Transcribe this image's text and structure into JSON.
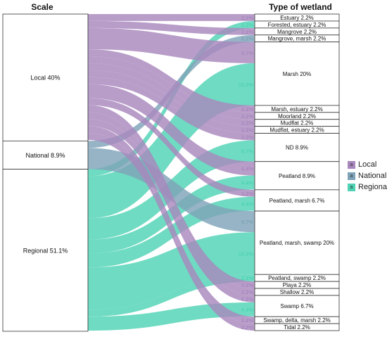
{
  "chart_data": {
    "type": "sankey",
    "left_axis_title": "Scale",
    "right_axis_title": "Type of wetland",
    "colors": {
      "Local": "#a887bd",
      "National": "#7fa3b8",
      "Regional": "#4fd3b4"
    },
    "left_nodes": [
      {
        "name": "Local",
        "label": "Local  40%",
        "value": 40
      },
      {
        "name": "National",
        "label": "National  8.9%",
        "value": 8.9
      },
      {
        "name": "Regional",
        "label": "Regional  51.1%",
        "value": 51.1
      }
    ],
    "right_nodes": [
      {
        "name": "Estuary",
        "label": "Estuary  2.2%",
        "value": 2.2
      },
      {
        "name": "Forested, estuary",
        "label": "Forested, estuary  2.2%",
        "value": 2.2
      },
      {
        "name": "Mangrove",
        "label": "Mangrove  2.2%",
        "value": 2.2
      },
      {
        "name": "Mangrove, marsh",
        "label": "Mangrove, marsh  2.2%",
        "value": 2.2
      },
      {
        "name": "Marsh",
        "label": "Marsh  20%",
        "value": 20
      },
      {
        "name": "Marsh, estuary",
        "label": "Marsh, estuary  2.2%",
        "value": 2.2
      },
      {
        "name": "Moorland",
        "label": "Moorland  2.2%",
        "value": 2.2
      },
      {
        "name": "Mudflat",
        "label": "Mudflat  2.2%",
        "value": 2.2
      },
      {
        "name": "Mudflat, estuary",
        "label": "Mudflat, estuary  2.2%",
        "value": 2.2
      },
      {
        "name": "ND",
        "label": "ND  8.9%",
        "value": 8.9
      },
      {
        "name": "Peatland",
        "label": "Peatland  8.9%",
        "value": 8.9
      },
      {
        "name": "Peatland, marsh",
        "label": "Peatland, marsh  6.7%",
        "value": 6.7
      },
      {
        "name": "Peatland, marsh, swamp",
        "label": "Peatland, marsh, swamp  20%",
        "value": 20
      },
      {
        "name": "Peatland, swamp",
        "label": "Peatland, swamp  2.2%",
        "value": 2.2
      },
      {
        "name": "Playa",
        "label": "Playa  2.2%",
        "value": 2.2
      },
      {
        "name": "Shallow",
        "label": "Shallow  2.2%",
        "value": 2.2
      },
      {
        "name": "Swamp",
        "label": "Swamp  6.7%",
        "value": 6.7
      },
      {
        "name": "Swamp, delta, marsh",
        "label": "Swamp, delta, marsh  2.2%",
        "value": 2.2
      },
      {
        "name": "Tidal",
        "label": "Tidal  2.2%",
        "value": 2.2
      }
    ],
    "flows": [
      {
        "source": "Local",
        "target": "Estuary",
        "value": 2.2,
        "label": "2.2%"
      },
      {
        "source": "Regional",
        "target": "Forested, estuary",
        "value": 2.2,
        "label": "2.2%"
      },
      {
        "source": "Local",
        "target": "Mangrove",
        "value": 2.2,
        "label": "2.2%"
      },
      {
        "source": "National",
        "target": "Mangrove, marsh",
        "value": 2.2,
        "label": "2.2%"
      },
      {
        "source": "Local",
        "target": "Marsh",
        "value": 6.7,
        "label": "6.7%"
      },
      {
        "source": "Regional",
        "target": "Marsh",
        "value": 13.3,
        "label": "13.3%"
      },
      {
        "source": "Local",
        "target": "Marsh, estuary",
        "value": 2.2,
        "label": "2.2%"
      },
      {
        "source": "Local",
        "target": "Moorland",
        "value": 2.2,
        "label": "2.2%"
      },
      {
        "source": "Local",
        "target": "Mudflat",
        "value": 2.2,
        "label": "2.2%"
      },
      {
        "source": "Local",
        "target": "Mudflat, estuary",
        "value": 2.2,
        "label": "2.2%"
      },
      {
        "source": "Local",
        "target": "ND",
        "value": 2.2,
        "label": "2.2%"
      },
      {
        "source": "Regional",
        "target": "ND",
        "value": 6.7,
        "label": "6.7%"
      },
      {
        "source": "Local",
        "target": "Peatland",
        "value": 4.4,
        "label": "4.4%"
      },
      {
        "source": "Regional",
        "target": "Peatland",
        "value": 4.4,
        "label": "4.4%"
      },
      {
        "source": "Local",
        "target": "Peatland, marsh",
        "value": 2.2,
        "label": "2.2%"
      },
      {
        "source": "Regional",
        "target": "Peatland, marsh",
        "value": 4.4,
        "label": "4.4%"
      },
      {
        "source": "National",
        "target": "Peatland, marsh, swamp",
        "value": 6.7,
        "label": "6.7%"
      },
      {
        "source": "Regional",
        "target": "Peatland, marsh, swamp",
        "value": 13.3,
        "label": "13.3%"
      },
      {
        "source": "Regional",
        "target": "Peatland, swamp",
        "value": 2.2,
        "label": "2.2%"
      },
      {
        "source": "Local",
        "target": "Playa",
        "value": 2.2,
        "label": "2.2%"
      },
      {
        "source": "Local",
        "target": "Shallow",
        "value": 2.2,
        "label": "2.2%"
      },
      {
        "source": "Local",
        "target": "Swamp",
        "value": 2.2,
        "label": "2.2%"
      },
      {
        "source": "Regional",
        "target": "Swamp",
        "value": 4.4,
        "label": "4.4%"
      },
      {
        "source": "Local",
        "target": "Swamp, delta, marsh",
        "value": 2.2,
        "label": "2.2%"
      },
      {
        "source": "Local",
        "target": "Tidal",
        "value": 2.2,
        "label": "2.2%"
      }
    ],
    "legend": {
      "position": "right",
      "swatch_letter": "a",
      "items": [
        {
          "name": "Local",
          "color": "#a887bd"
        },
        {
          "name": "National",
          "color": "#7fa3b8"
        },
        {
          "name": "Regional",
          "color": "#4fd3b4"
        }
      ]
    }
  }
}
